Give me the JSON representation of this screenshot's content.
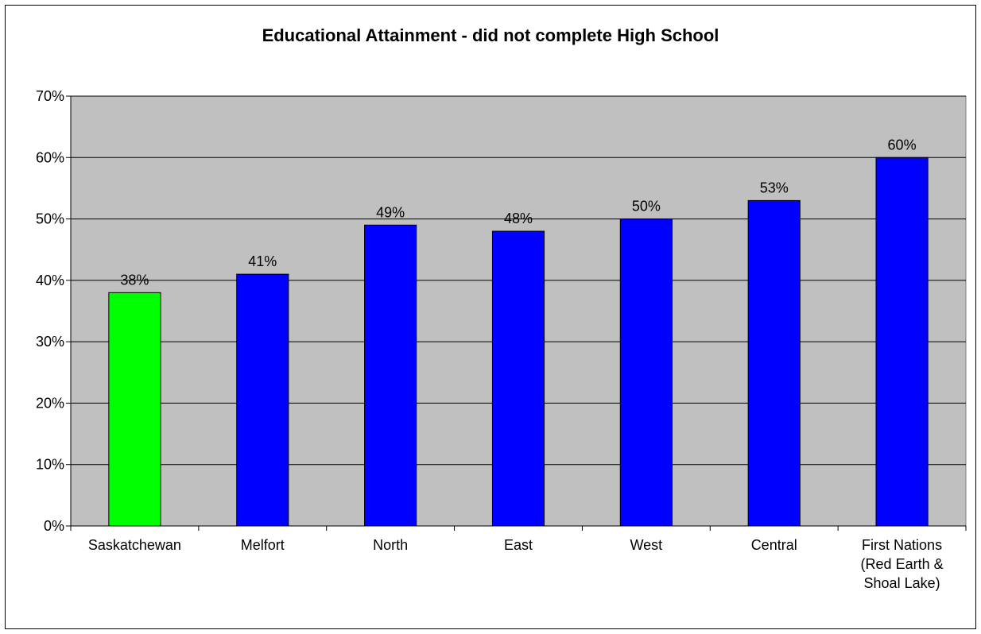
{
  "chart_data": {
    "type": "bar",
    "title": "Educational Attainment - did not complete High School",
    "xlabel": "",
    "ylabel": "",
    "categories": [
      [
        "Saskatchewan"
      ],
      [
        "Melfort"
      ],
      [
        "North"
      ],
      [
        "East"
      ],
      [
        "West"
      ],
      [
        "Central"
      ],
      [
        "First Nations",
        "(Red Earth &",
        "Shoal Lake)"
      ]
    ],
    "values": [
      38,
      41,
      49,
      48,
      50,
      53,
      60
    ],
    "data_labels": [
      "38%",
      "41%",
      "49%",
      "48%",
      "50%",
      "53%",
      "60%"
    ],
    "bar_colors": [
      "#00FF00",
      "#0000FF",
      "#0000FF",
      "#0000FF",
      "#0000FF",
      "#0000FF",
      "#0000FF"
    ],
    "y_ticks": [
      0,
      10,
      20,
      30,
      40,
      50,
      60,
      70
    ],
    "y_tick_labels": [
      "0%",
      "10%",
      "20%",
      "30%",
      "40%",
      "50%",
      "60%",
      "70%"
    ],
    "ylim": [
      0,
      70
    ],
    "grid": true,
    "legend": "none",
    "plot_background": "#C0C0C0"
  }
}
